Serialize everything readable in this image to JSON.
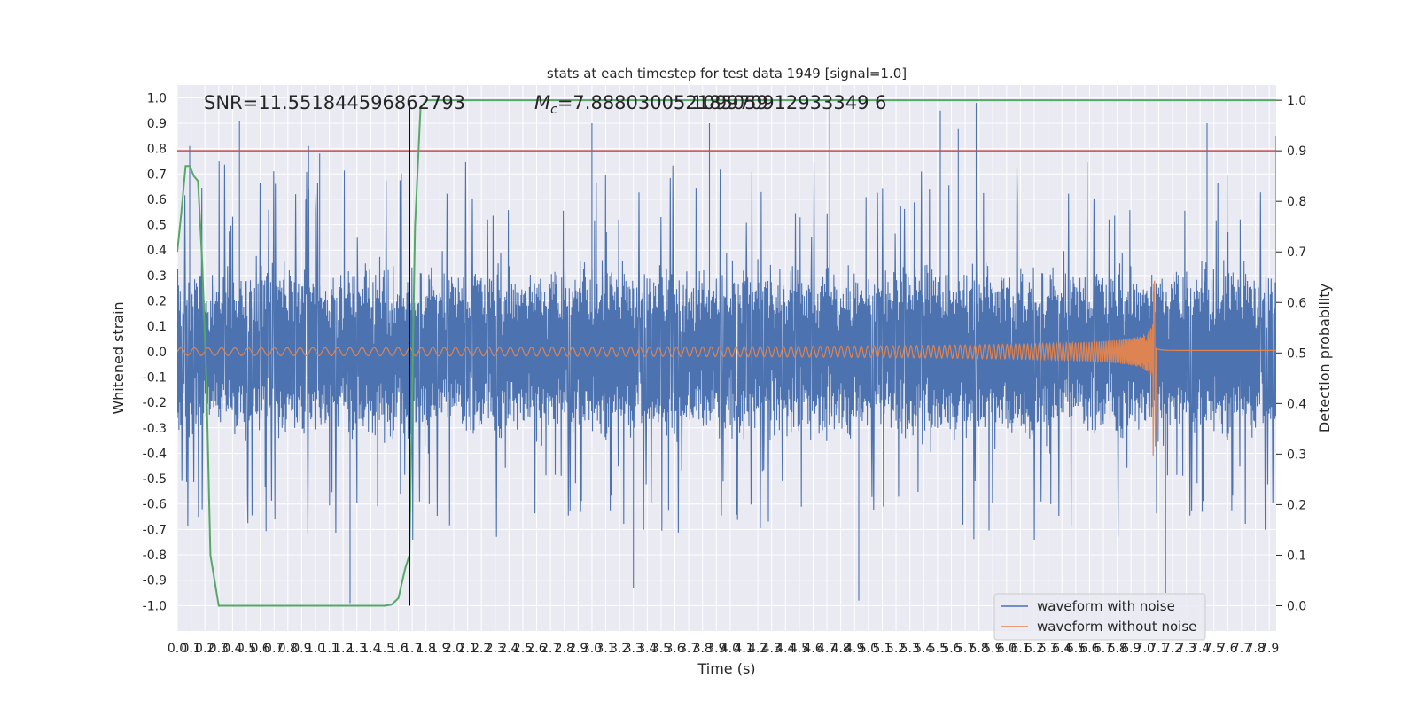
{
  "chart_data": {
    "type": "line",
    "title": "stats at each timestep for test data 1949 [signal=1.0]",
    "xlabel": "Time (s)",
    "ylabel": "Whitened strain",
    "y2label": "Detection probability",
    "xlim": [
      0.0,
      7.95
    ],
    "ylim": [
      -1.1,
      1.05
    ],
    "y2lim": [
      -0.05,
      1.03
    ],
    "x_ticks": [
      0.0,
      0.1,
      0.2,
      0.3,
      0.4,
      0.5,
      0.6,
      0.7,
      0.8,
      0.9,
      1.0,
      1.1,
      1.2,
      1.3,
      1.4,
      1.5,
      1.6,
      1.7,
      1.8,
      1.9,
      2.0,
      2.1,
      2.2,
      2.3,
      2.4,
      2.5,
      2.6,
      2.7,
      2.8,
      2.9,
      3.0,
      3.1,
      3.2,
      3.3,
      3.4,
      3.5,
      3.6,
      3.7,
      3.8,
      3.9,
      4.0,
      4.1,
      4.2,
      4.3,
      4.4,
      4.5,
      4.6,
      4.7,
      4.8,
      4.9,
      5.0,
      5.1,
      5.2,
      5.3,
      5.4,
      5.5,
      5.6,
      5.7,
      5.8,
      5.9,
      6.0,
      6.1,
      6.2,
      6.3,
      6.4,
      6.5,
      6.6,
      6.7,
      6.8,
      6.9,
      7.0,
      7.1,
      7.2,
      7.3,
      7.4,
      7.5,
      7.6,
      7.7,
      7.8,
      7.9
    ],
    "y_ticks": [
      -1.0,
      -0.9,
      -0.8,
      -0.7,
      -0.6,
      -0.5,
      -0.4,
      -0.3,
      -0.2,
      -0.1,
      0.0,
      0.1,
      0.2,
      0.3,
      0.4,
      0.5,
      0.6,
      0.7,
      0.8,
      0.9,
      1.0
    ],
    "y2_ticks": [
      0.0,
      0.1,
      0.2,
      0.3,
      0.4,
      0.5,
      0.6,
      0.7,
      0.8,
      0.9,
      1.0
    ],
    "annotations": {
      "snr": "SNR=11.551844596862793",
      "mc": "M_c=7.888030052185059",
      "mc_overlap": "5.109970912933349 6"
    },
    "threshold": {
      "axis": "right",
      "value": 0.9,
      "color": "#c44e52"
    },
    "marker_line": {
      "x": 1.68,
      "color": "#000000"
    },
    "legend": {
      "position": "lower-right",
      "entries": [
        "waveform with noise",
        "waveform without noise"
      ]
    },
    "series": [
      {
        "name": "waveform with noise",
        "color": "#4c72b0",
        "axis": "left",
        "description": "dense noisy strain; core amplitude about ±0.4 with peaks",
        "peaks_x": [
          0.09,
          0.45,
          0.95,
          1.03,
          3.0,
          3.85,
          4.72,
          5.52,
          5.65,
          5.78,
          7.45,
          7.95,
          7.15,
          1.25,
          4.93,
          3.3
        ],
        "peaks_y": [
          0.81,
          0.91,
          0.81,
          0.78,
          0.9,
          0.9,
          0.98,
          0.95,
          0.88,
          0.98,
          0.9,
          0.85,
          -0.95,
          -0.99,
          -0.98,
          -0.93
        ]
      },
      {
        "name": "waveform without noise",
        "color": "#dd8452",
        "axis": "left",
        "description": "chirp signal with growing amplitude and frequency ending at merger",
        "x_start": 0.0,
        "x_merger": 7.08,
        "x_end": 7.95,
        "amplitude_start": 0.015,
        "amplitude_peak": 0.28,
        "amplitude_trough": -0.43
      },
      {
        "name": "detection probability",
        "color": "#55a868",
        "axis": "right",
        "x": [
          0.0,
          0.03,
          0.06,
          0.09,
          0.12,
          0.15,
          0.18,
          0.21,
          0.24,
          0.3,
          0.5,
          1.0,
          1.5,
          1.55,
          1.6,
          1.65,
          1.68,
          1.72,
          1.76,
          1.8,
          2.5,
          4.0,
          6.0,
          7.95
        ],
        "y": [
          0.7,
          0.78,
          0.87,
          0.87,
          0.85,
          0.84,
          0.68,
          0.45,
          0.1,
          0.0,
          0.0,
          0.0,
          0.0,
          0.002,
          0.015,
          0.075,
          0.1,
          0.75,
          0.985,
          1.0,
          1.0,
          1.0,
          1.0,
          1.0
        ]
      }
    ]
  }
}
